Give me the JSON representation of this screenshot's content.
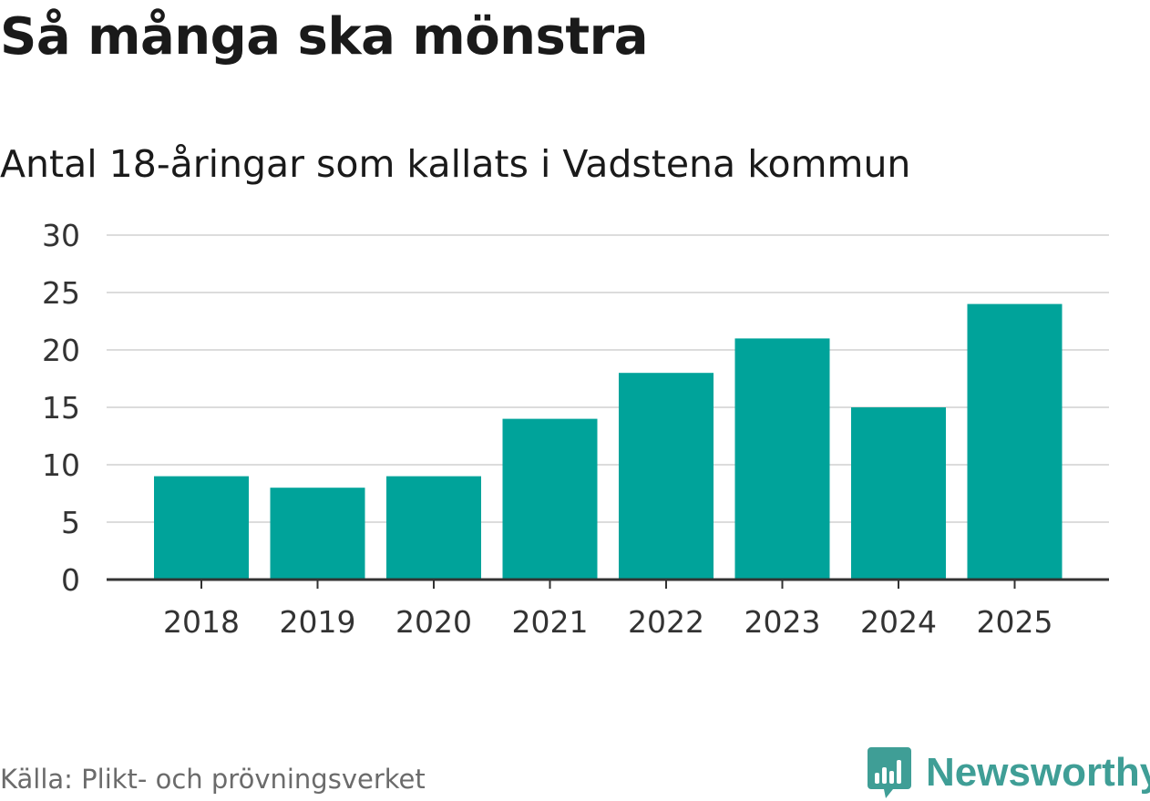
{
  "colors": {
    "bar": "#00a39a",
    "grid": "#dcdcdc",
    "axis": "#333333",
    "brand": "#3f9e96",
    "text": "#1a1a1a",
    "muted": "#6b6b6b"
  },
  "source": "Källa: Plikt- och prövningsverket",
  "brand": {
    "name": "Newsworthy",
    "icon": "bar-chart-speech-bubble-icon"
  },
  "chart_data": {
    "type": "bar",
    "title": "Så många ska mönstra",
    "subtitle": "Antal 18-åringar som kallats i Vadstena kommun",
    "xlabel": "",
    "ylabel": "",
    "categories": [
      "2018",
      "2019",
      "2020",
      "2021",
      "2022",
      "2023",
      "2024",
      "2025"
    ],
    "values": [
      9,
      8,
      9,
      14,
      18,
      21,
      15,
      24
    ],
    "ylim": [
      0,
      30
    ],
    "yticks": [
      0,
      5,
      10,
      15,
      20,
      25,
      30
    ],
    "grid": true,
    "legend": "none"
  }
}
